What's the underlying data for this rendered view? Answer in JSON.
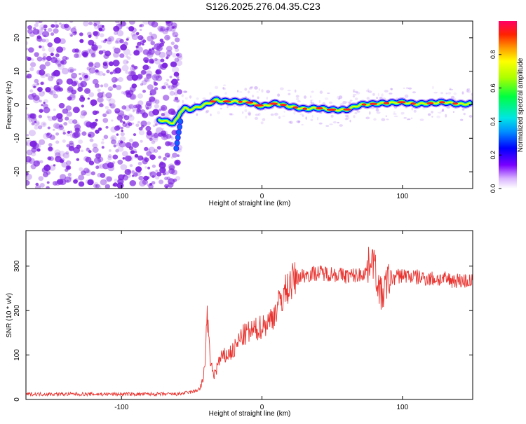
{
  "title": "S126.2025.276.04.35.C23",
  "colors": {
    "axis": "#000000",
    "snr_line": "#e8322e",
    "noise_points": "#7b1fe0",
    "track_core": "#ff2020"
  },
  "chart_data": [
    {
      "id": "spectrogram",
      "type": "heatmap",
      "xlabel": "Height of straight line (km)",
      "ylabel": "Frequency (Hz)",
      "xlim": [
        -168,
        150
      ],
      "ylim": [
        -25,
        25
      ],
      "xticks": [
        -100,
        0,
        100
      ],
      "yticks": [
        -20,
        -10,
        0,
        10,
        20
      ],
      "noise_region_x": [
        -168,
        -58
      ],
      "track": {
        "x": [
          -73,
          -68,
          -63,
          -60,
          -58,
          -55,
          -52,
          -48,
          -44,
          -40,
          -36,
          -32,
          -28,
          -20,
          -10,
          0,
          10,
          20,
          30,
          40,
          50,
          60,
          70,
          80,
          90,
          100,
          110,
          120,
          130,
          140,
          148
        ],
        "y": [
          -4.5,
          -5,
          -5.5,
          -4,
          -2,
          -1,
          -1.5,
          -1,
          -0.5,
          0.2,
          0.8,
          1.5,
          1,
          1,
          0.8,
          -0.5,
          0.5,
          -0.5,
          -1.2,
          -1,
          -1.5,
          -1.5,
          0,
          0.3,
          0.5,
          0.8,
          0.2,
          0.5,
          0.8,
          0.2,
          0.3
        ]
      },
      "colorbar": {
        "label": "Normalized spectral amplitude",
        "range": [
          0.0,
          1.0
        ],
        "ticks": [
          0.0,
          0.2,
          0.4,
          0.6,
          0.8
        ]
      }
    },
    {
      "id": "snr",
      "type": "line",
      "xlabel": "Height of straight line (km)",
      "ylabel": "SNR (10 * v/v)",
      "xlim": [
        -168,
        150
      ],
      "ylim": [
        0,
        380
      ],
      "xticks": [
        -100,
        0,
        100
      ],
      "yticks": [
        0,
        100,
        200,
        300
      ],
      "series": [
        {
          "name": "SNR",
          "x": [
            -168,
            -140,
            -100,
            -80,
            -60,
            -48,
            -44,
            -42,
            -40,
            -39,
            -38,
            -36,
            -34,
            -30,
            -25,
            -20,
            -15,
            -10,
            -5,
            0,
            5,
            10,
            15,
            20,
            25,
            30,
            40,
            50,
            60,
            70,
            75,
            78,
            80,
            85,
            90,
            100,
            110,
            120,
            130,
            140,
            150
          ],
          "y": [
            12,
            12,
            12,
            12,
            12,
            18,
            25,
            40,
            110,
            205,
            130,
            70,
            55,
            90,
            100,
            110,
            140,
            150,
            155,
            165,
            175,
            200,
            235,
            260,
            275,
            280,
            285,
            283,
            278,
            280,
            290,
            330,
            300,
            230,
            270,
            280,
            275,
            272,
            270,
            268,
            265
          ]
        }
      ]
    }
  ]
}
